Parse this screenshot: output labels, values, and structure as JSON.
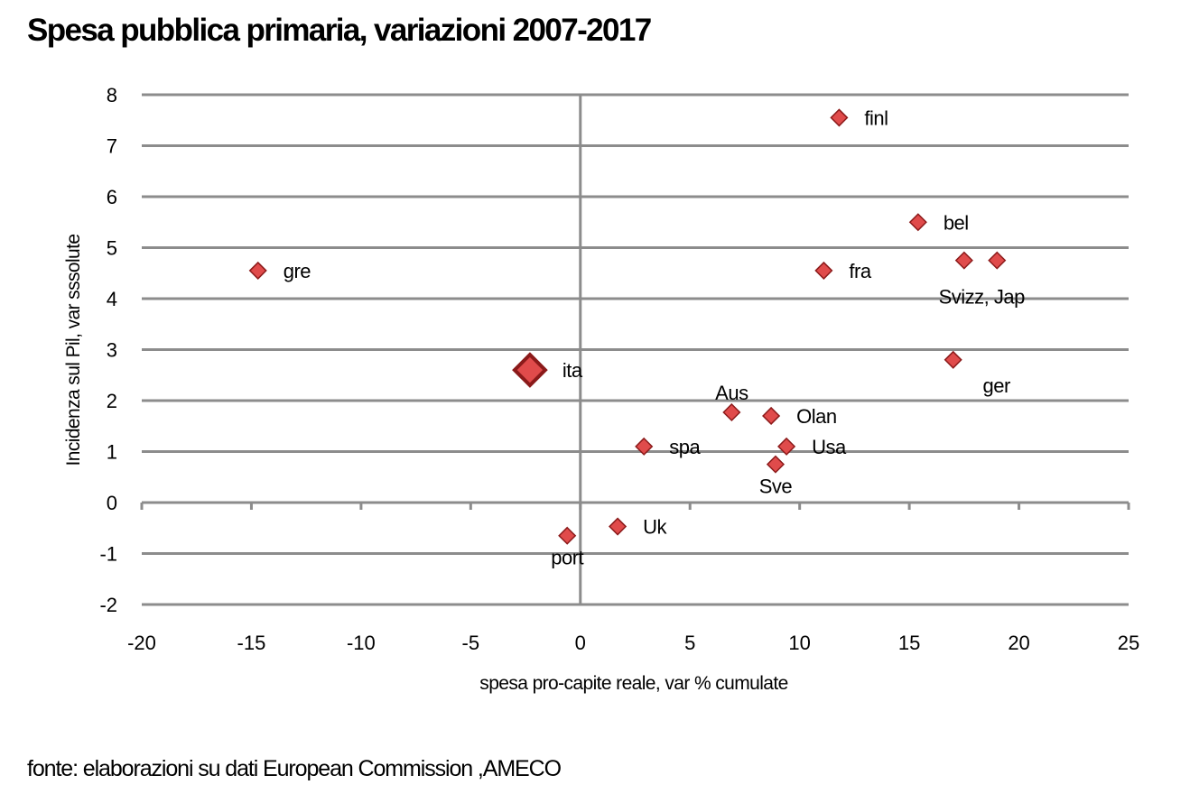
{
  "title": "Spesa pubblica primaria, variazioni 2007-2017",
  "source": "fonte: elaborazioni su dati European Commission ,AMECO",
  "chart_data": {
    "type": "scatter",
    "title": "Spesa pubblica primaria, variazioni 2007-2017",
    "xlabel": "spesa pro-capite reale,  var % cumulate",
    "ylabel": "Incidenza sul Pil, var sssolute",
    "xlim": [
      -20,
      25
    ],
    "ylim": [
      -2,
      8
    ],
    "xticks": [
      -20,
      -15,
      -10,
      -5,
      0,
      5,
      10,
      15,
      20,
      25
    ],
    "yticks": [
      8,
      7,
      6,
      5,
      4,
      3,
      2,
      1,
      0,
      -1,
      -2
    ],
    "grid": "horizontal",
    "marker_color": "#e04b4b",
    "marker_edge_color": "#8b1a1a",
    "gridline_color": "#8c8c8c",
    "points": [
      {
        "label": "finl",
        "x": 11.8,
        "y": 7.55,
        "label_pos": "right"
      },
      {
        "label": "bel",
        "x": 15.4,
        "y": 5.5,
        "label_pos": "right"
      },
      {
        "label": "fra",
        "x": 11.1,
        "y": 4.55,
        "label_pos": "right"
      },
      {
        "label": "Svizz",
        "x": 17.5,
        "y": 4.75,
        "label_pos": "none"
      },
      {
        "label": "Jap",
        "x": 19.0,
        "y": 4.75,
        "label_pos": "none"
      },
      {
        "label": "gre",
        "x": -14.7,
        "y": 4.55,
        "label_pos": "right"
      },
      {
        "label": "ita",
        "x": -2.3,
        "y": 2.6,
        "label_pos": "right",
        "highlight": true
      },
      {
        "label": "ger",
        "x": 17.0,
        "y": 2.8,
        "label_pos": "below-right"
      },
      {
        "label": "Aus",
        "x": 6.9,
        "y": 1.77,
        "label_pos": "above"
      },
      {
        "label": "Olan",
        "x": 8.7,
        "y": 1.7,
        "label_pos": "right"
      },
      {
        "label": "spa",
        "x": 2.9,
        "y": 1.1,
        "label_pos": "right"
      },
      {
        "label": "Usa",
        "x": 9.4,
        "y": 1.1,
        "label_pos": "right"
      },
      {
        "label": "Sve",
        "x": 8.9,
        "y": 0.75,
        "label_pos": "below"
      },
      {
        "label": "Uk",
        "x": 1.7,
        "y": -0.47,
        "label_pos": "right"
      },
      {
        "label": "port",
        "x": -0.6,
        "y": -0.65,
        "label_pos": "below"
      }
    ],
    "annotations": [
      {
        "text": "Svizz, Jap",
        "x": 18.3,
        "y": 4.75,
        "position": "below"
      }
    ]
  }
}
